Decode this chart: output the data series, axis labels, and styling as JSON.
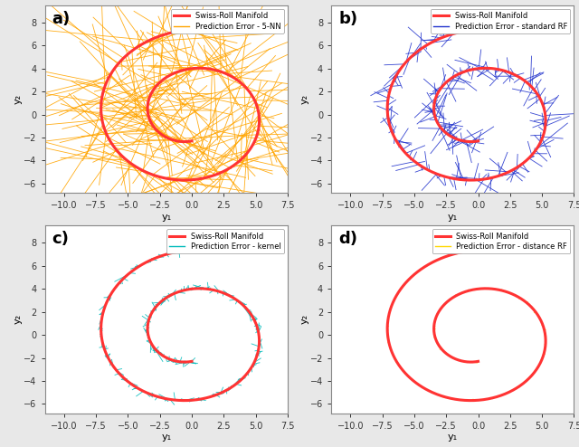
{
  "subplot_labels": [
    "a)",
    "b)",
    "c)",
    "d)"
  ],
  "manifold_color": "#FF3333",
  "manifold_linewidth": 2.2,
  "error_colors": [
    "#FFA500",
    "#2233CC",
    "#00BBBB",
    "#FFD700"
  ],
  "error_linewidths": [
    0.6,
    0.6,
    0.6,
    0.6
  ],
  "legend_labels": [
    [
      "Swiss-Roll Manifold",
      "Prediction Error - 5-NN"
    ],
    [
      "Swiss-Roll Manifold",
      "Prediction Error - standard RF"
    ],
    [
      "Swiss-Roll Manifold",
      "Prediction Error - kernel"
    ],
    [
      "Swiss-Roll Manifold",
      "Prediction Error - distance RF"
    ]
  ],
  "xlim": [
    -11.5,
    7.5
  ],
  "ylim": [
    -6.8,
    9.5
  ],
  "xlabel": "y₁",
  "ylabel": "y₂",
  "n_manifold_points": 800,
  "n_error_points": 300,
  "seed": 42,
  "background_color": "#E8E8E8",
  "panel_bg": "#FFFFFF",
  "err_scales": [
    4.0,
    0.9,
    0.55,
    0.18
  ]
}
